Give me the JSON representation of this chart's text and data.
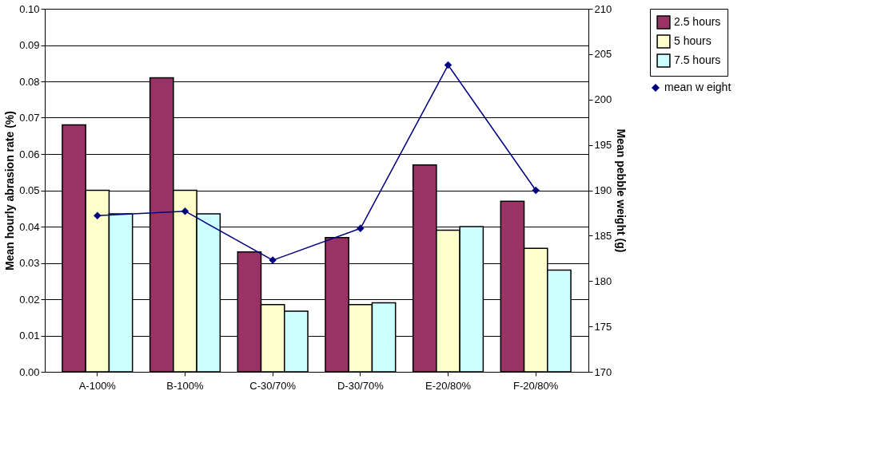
{
  "chart_data": {
    "type": "bar",
    "xlabel": null,
    "ylabel": "Mean hourly abrasion rate (%)",
    "y2label": "Mean pebble weight (g)",
    "categories": [
      "A-100%",
      "B-100%",
      "C-30/70%",
      "D-30/70%",
      "E-20/80%",
      "F-20/80%"
    ],
    "series": [
      {
        "name": "2.5 hours",
        "color": "#993366",
        "values": [
          0.068,
          0.081,
          0.033,
          0.037,
          0.057,
          0.047
        ]
      },
      {
        "name": " 5 hours",
        "color": "#ffffcc",
        "values": [
          0.05,
          0.05,
          0.0185,
          0.0185,
          0.039,
          0.034
        ]
      },
      {
        "name": "7.5 hours",
        "color": "#ccffff",
        "values": [
          0.0435,
          0.0435,
          0.0167,
          0.019,
          0.04,
          0.028
        ]
      },
      {
        "name": "mean w eight",
        "color": "#000080",
        "type": "line",
        "axis": "y2",
        "marker": "diamond",
        "values": [
          187.2,
          187.7,
          182.3,
          185.8,
          203.8,
          190.0
        ]
      }
    ],
    "ylim": [
      0,
      0.1
    ],
    "yticks": [
      {
        "value": 0,
        "label": "0.00"
      },
      {
        "value": 0.01,
        "label": "0.01"
      },
      {
        "value": 0.02,
        "label": "0.02"
      },
      {
        "value": 0.03,
        "label": "0.03"
      },
      {
        "value": 0.04,
        "label": "0.04"
      },
      {
        "value": 0.05,
        "label": "0.05"
      },
      {
        "value": 0.06,
        "label": "0.06"
      },
      {
        "value": 0.07,
        "label": "0.07"
      },
      {
        "value": 0.08,
        "label": "0.08"
      },
      {
        "value": 0.09,
        "label": "0.09"
      },
      {
        "value": 0.1,
        "label": "0.10"
      }
    ],
    "y2lim": [
      170,
      210
    ],
    "y2ticks": [
      170,
      175,
      180,
      185,
      190,
      195,
      200,
      205,
      210
    ],
    "grid": "y",
    "legend": "right"
  }
}
